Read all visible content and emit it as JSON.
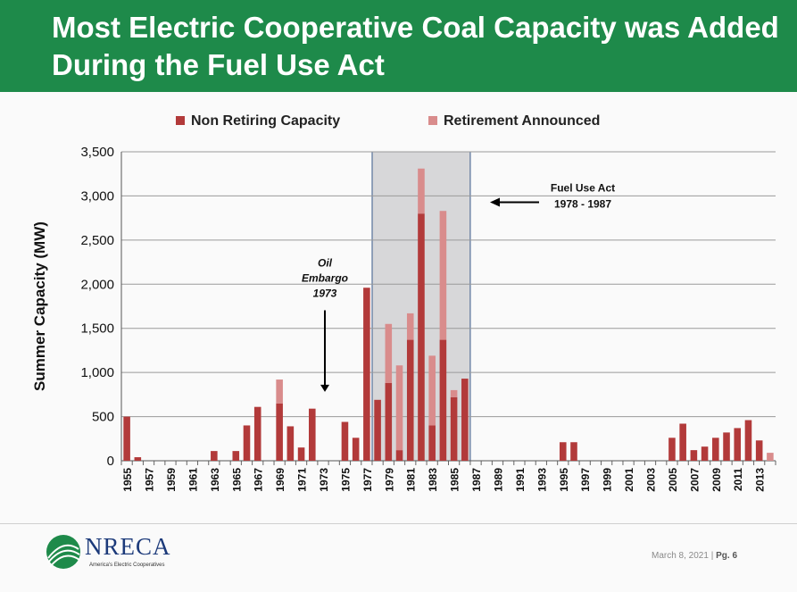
{
  "title": "Most Electric Cooperative Coal Capacity was Added During the Fuel Use Act",
  "footer": {
    "date": "March 8, 2021",
    "separator": "|",
    "page": "Pg. 6"
  },
  "logo": {
    "name": "NRECA",
    "tagline": "America's Electric Cooperatives",
    "icon": "nreca-globe-logo"
  },
  "colors": {
    "header": "#1e8a4a",
    "non_retiring": "#b23a3a",
    "retirement": "#d98c8c",
    "shade": "#c4c4c8"
  },
  "chart_data": {
    "type": "bar",
    "stacked": true,
    "ylabel": "Summer Capacity (MW)",
    "xlabel": "",
    "ylim": [
      0,
      3500
    ],
    "yticks": [
      "0",
      "500",
      "1,000",
      "1,500",
      "2,000",
      "2,500",
      "3,000",
      "3,500"
    ],
    "ytick_values": [
      0,
      500,
      1000,
      1500,
      2000,
      2500,
      3000,
      3500
    ],
    "grid": true,
    "legend_position": "top",
    "categories": [
      1955,
      1956,
      1957,
      1958,
      1959,
      1960,
      1961,
      1962,
      1963,
      1964,
      1965,
      1966,
      1967,
      1968,
      1969,
      1970,
      1971,
      1972,
      1973,
      1974,
      1975,
      1976,
      1977,
      1978,
      1979,
      1980,
      1981,
      1982,
      1983,
      1984,
      1985,
      1986,
      1987,
      1988,
      1989,
      1990,
      1991,
      1992,
      1993,
      1994,
      1995,
      1996,
      1997,
      1998,
      1999,
      2000,
      2001,
      2002,
      2003,
      2004,
      2005,
      2006,
      2007,
      2008,
      2009,
      2010,
      2011,
      2012,
      2013,
      2014
    ],
    "tick_labels": [
      "1955",
      "1957",
      "1959",
      "1961",
      "1963",
      "1965",
      "1967",
      "1969",
      "1971",
      "1973",
      "1975",
      "1977",
      "1979",
      "1981",
      "1983",
      "1985",
      "1987",
      "1989",
      "1991",
      "1993",
      "1995",
      "1997",
      "1999",
      "2001",
      "2003",
      "2005",
      "2007",
      "2009",
      "2011",
      "2013"
    ],
    "series": [
      {
        "name": "Non Retiring Capacity",
        "values": [
          500,
          40,
          0,
          0,
          0,
          0,
          0,
          0,
          110,
          0,
          110,
          400,
          610,
          0,
          650,
          390,
          150,
          590,
          0,
          0,
          440,
          260,
          1960,
          690,
          880,
          120,
          1370,
          2800,
          400,
          1370,
          720,
          930,
          0,
          0,
          0,
          0,
          0,
          0,
          0,
          0,
          210,
          210,
          0,
          0,
          0,
          0,
          0,
          0,
          0,
          0,
          260,
          420,
          120,
          160,
          260,
          320,
          370,
          460,
          230,
          0
        ]
      },
      {
        "name": "Retirement Announced",
        "values": [
          0,
          0,
          0,
          0,
          0,
          0,
          0,
          0,
          0,
          0,
          0,
          0,
          0,
          0,
          270,
          0,
          0,
          0,
          0,
          0,
          0,
          0,
          0,
          0,
          670,
          960,
          300,
          510,
          790,
          1460,
          80,
          0,
          0,
          0,
          0,
          0,
          0,
          0,
          0,
          0,
          0,
          0,
          0,
          0,
          0,
          0,
          0,
          0,
          0,
          0,
          0,
          0,
          0,
          0,
          0,
          0,
          0,
          0,
          0,
          90
        ]
      }
    ],
    "shaded_range": [
      1978,
      1987
    ],
    "annotations": [
      {
        "id": "oil",
        "lines": [
          "Oil",
          "Embargo",
          "1973"
        ],
        "year": 1973,
        "y_text": 2200,
        "arrow_to": 780
      },
      {
        "id": "fua",
        "lines": [
          "Fuel Use Act",
          "1978 - 1987"
        ],
        "y_text": 3050
      }
    ]
  }
}
